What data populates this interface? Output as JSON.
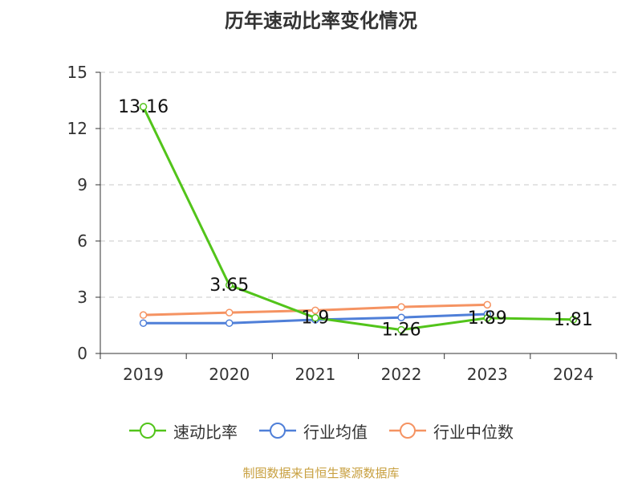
{
  "chart_data": {
    "type": "line",
    "title": "历年速动比率变化情况",
    "categories": [
      "2019",
      "2020",
      "2021",
      "2022",
      "2023",
      "2024"
    ],
    "ylim": [
      0,
      15
    ],
    "yticks": [
      0,
      3,
      6,
      9,
      12,
      15
    ],
    "grid": true,
    "legend_position": "bottom",
    "series": [
      {
        "name": "速动比率",
        "color": "#52c41a",
        "values": [
          13.16,
          3.65,
          1.9,
          1.26,
          1.89,
          1.81
        ],
        "labels": [
          "13.16",
          "3.65",
          "1.9",
          "1.26",
          "1.89",
          "1.81"
        ]
      },
      {
        "name": "行业均值",
        "color": "#4f7fd8",
        "values": [
          1.62,
          1.62,
          1.8,
          1.92,
          2.1,
          null
        ]
      },
      {
        "name": "行业中位数",
        "color": "#f59362",
        "values": [
          2.05,
          2.18,
          2.3,
          2.48,
          2.6,
          null
        ]
      }
    ]
  },
  "source": "制图数据来自恒生聚源数据库"
}
